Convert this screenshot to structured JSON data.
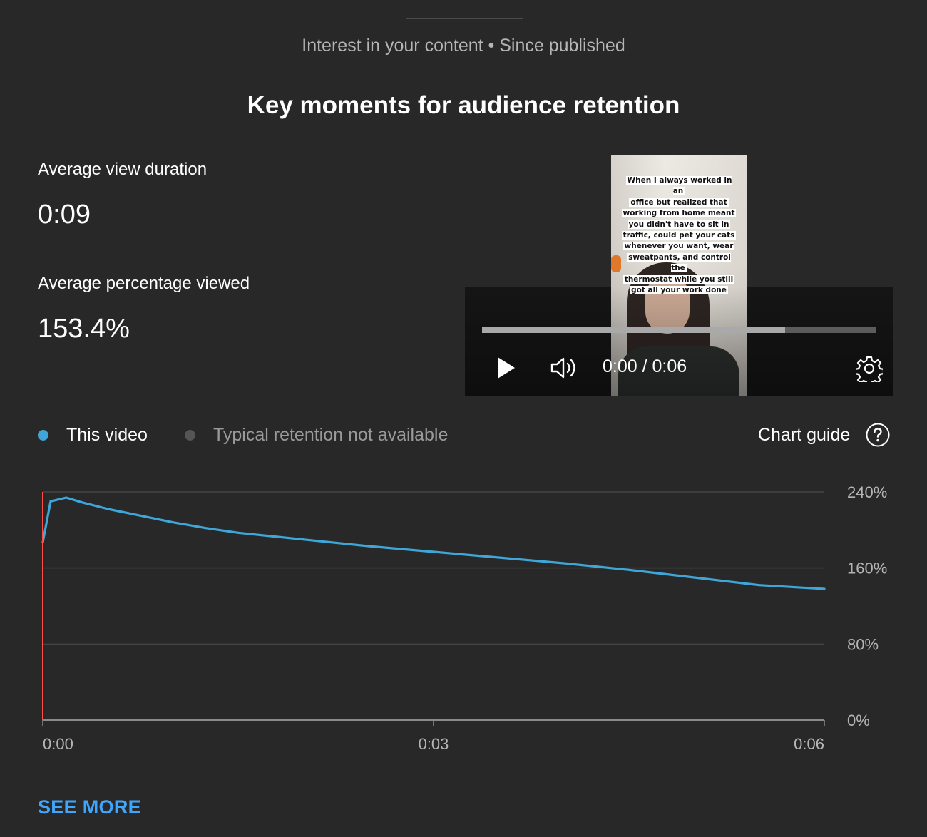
{
  "header": {
    "subtitle": "Interest in your content • Since published",
    "title": "Key moments for audience retention"
  },
  "metrics": {
    "avg_view_duration_label": "Average view duration",
    "avg_view_duration_value": "0:09",
    "avg_pct_viewed_label": "Average percentage viewed",
    "avg_pct_viewed_value": "153.4%"
  },
  "player": {
    "caption_lines": [
      "When I always worked in an",
      "office but realized that",
      "working from home meant",
      "you didn't have to sit in",
      "traffic, could pet your cats",
      "whenever you want, wear",
      "sweatpants, and control the",
      "thermostat while you still",
      "got all your work done"
    ],
    "time_display": "0:00 / 0:06",
    "buffered_fraction": 0.77,
    "icons": [
      "play-icon",
      "volume-icon",
      "settings-gear-icon"
    ]
  },
  "legend": {
    "this_video": "This video",
    "typical": "Typical retention not available",
    "this_video_color": "#3ea6d8",
    "typical_color": "#555555",
    "chart_guide": "Chart guide"
  },
  "chart_data": {
    "type": "line",
    "title": "",
    "xlabel": "",
    "ylabel": "",
    "x_tick_labels": [
      "0:00",
      "0:03",
      "0:06"
    ],
    "y_tick_labels": [
      "240%",
      "160%",
      "80%",
      "0%"
    ],
    "xlim": [
      0,
      6
    ],
    "ylim": [
      0,
      240
    ],
    "grid": true,
    "y_axis_side": "right",
    "series": [
      {
        "color": "#3ea6d8",
        "x": [
          0,
          0.06,
          0.18,
          0.3,
          0.5,
          0.75,
          1.0,
          1.25,
          1.5,
          2.0,
          2.5,
          3.0,
          3.5,
          4.0,
          4.5,
          5.0,
          5.5,
          6.0
        ],
        "y": [
          187,
          230,
          234,
          229,
          222,
          215,
          208,
          202,
          197,
          190,
          183,
          177,
          171,
          165,
          158,
          150,
          142,
          138
        ]
      }
    ],
    "current_position_marker_x": 0,
    "marker_color": "#ff4e45"
  },
  "footer": {
    "see_more": "SEE MORE"
  }
}
